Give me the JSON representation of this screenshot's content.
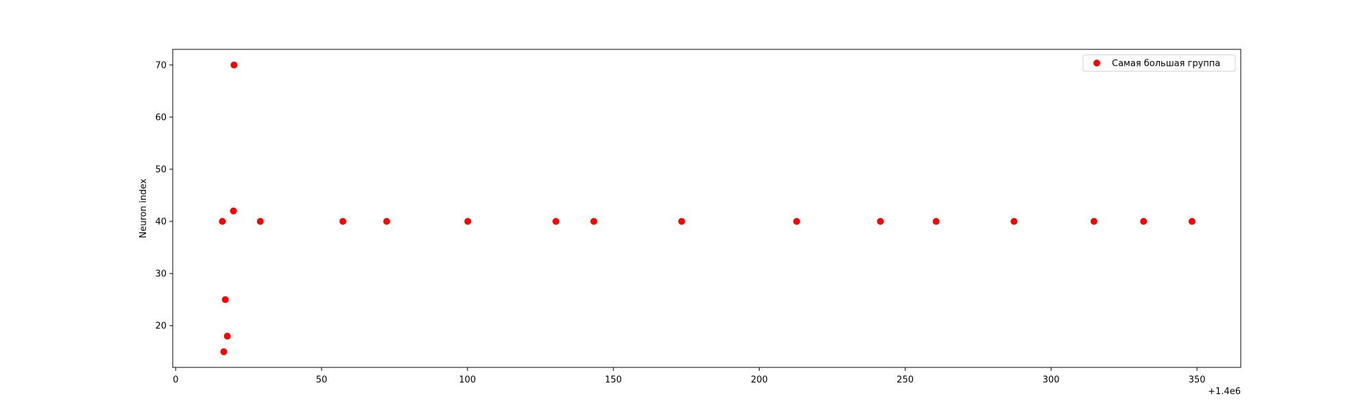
{
  "chart_data": {
    "type": "scatter",
    "title": "",
    "xlabel": "",
    "ylabel": "Neuron index",
    "x_offset_label": "+1.4e6",
    "xlim": [
      1399999,
      1400365
    ],
    "ylim": [
      12,
      73
    ],
    "x_ticks": [
      1400000,
      1400050,
      1400100,
      1400150,
      1400200,
      1400250,
      1400300,
      1400350
    ],
    "x_tick_labels": [
      "0",
      "50",
      "100",
      "150",
      "200",
      "250",
      "300",
      "350"
    ],
    "y_ticks": [
      20,
      30,
      40,
      50,
      60,
      70
    ],
    "y_tick_labels": [
      "20",
      "30",
      "40",
      "50",
      "60",
      "70"
    ],
    "grid": false,
    "legend_position": "top-right",
    "series": [
      {
        "name": "Самая большая группа",
        "color": "#ff0000",
        "marker": "circle",
        "points": [
          {
            "x": 1400016.0,
            "y": 40
          },
          {
            "x": 1400016.5,
            "y": 15
          },
          {
            "x": 1400017.0,
            "y": 25
          },
          {
            "x": 1400017.7,
            "y": 18
          },
          {
            "x": 1400019.8,
            "y": 42
          },
          {
            "x": 1400020.0,
            "y": 70
          },
          {
            "x": 1400029.0,
            "y": 40
          },
          {
            "x": 1400057.3,
            "y": 40
          },
          {
            "x": 1400072.3,
            "y": 40
          },
          {
            "x": 1400100.1,
            "y": 40
          },
          {
            "x": 1400130.3,
            "y": 40
          },
          {
            "x": 1400143.3,
            "y": 40
          },
          {
            "x": 1400173.4,
            "y": 40
          },
          {
            "x": 1400212.8,
            "y": 40
          },
          {
            "x": 1400241.5,
            "y": 40
          },
          {
            "x": 1400260.6,
            "y": 40
          },
          {
            "x": 1400287.3,
            "y": 40
          },
          {
            "x": 1400314.7,
            "y": 40
          },
          {
            "x": 1400331.7,
            "y": 40
          },
          {
            "x": 1400348.3,
            "y": 40
          }
        ]
      }
    ]
  }
}
